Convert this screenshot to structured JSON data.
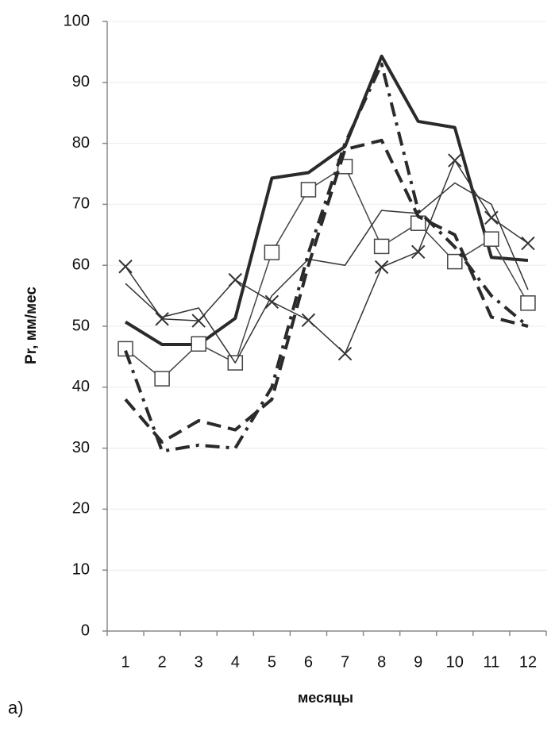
{
  "chart_data": {
    "type": "line",
    "y_label": "Pr, мм/мес",
    "x_label": "месяцы",
    "annotation": "а)",
    "categories": [
      "1",
      "2",
      "3",
      "4",
      "5",
      "6",
      "7",
      "8",
      "9",
      "10",
      "11",
      "12"
    ],
    "ylim": [
      0,
      100
    ],
    "yticks": [
      0,
      10,
      20,
      30,
      40,
      50,
      60,
      70,
      80,
      90,
      100
    ],
    "grid": true,
    "series": [
      {
        "color": "#2a2a2a",
        "width": 4,
        "dash": "solid",
        "marker": "none",
        "values": [
          50.7,
          47,
          47,
          51.3,
          74.3,
          75.2,
          79.5,
          94.3,
          83.6,
          82.6,
          61.3,
          60.8
        ]
      },
      {
        "color": "#444444",
        "width": 1.5,
        "dash": "solid",
        "marker": "square",
        "values": [
          46.3,
          41.4,
          47.1,
          44,
          62.1,
          72.4,
          76.2,
          63.1,
          66.9,
          60.6,
          64.3,
          53.8
        ]
      },
      {
        "color": "#333333",
        "width": 1.5,
        "dash": "solid",
        "marker": "x",
        "values": [
          59.8,
          51.2,
          50.9,
          57.6,
          54,
          51,
          45.5,
          59.7,
          62.2,
          77.2,
          67.8,
          63.6
        ]
      },
      {
        "color": "#333333",
        "width": 1.5,
        "dash": "solid",
        "marker": "none",
        "values": [
          57,
          51.5,
          53,
          44,
          55,
          61,
          60,
          69,
          68.5,
          73.5,
          70,
          56
        ]
      },
      {
        "color": "#2a2a2a",
        "width": 4,
        "dash": "dash",
        "marker": "none",
        "values": [
          38,
          31,
          34.5,
          33,
          38,
          60,
          79,
          80.5,
          68,
          65,
          51.5,
          50
        ]
      },
      {
        "color": "#2a2a2a",
        "width": 4,
        "dash": "dashdot",
        "marker": "none",
        "values": [
          46,
          29.5,
          30.5,
          30,
          40,
          62,
          80,
          93,
          69,
          63,
          55,
          50
        ]
      }
    ]
  }
}
